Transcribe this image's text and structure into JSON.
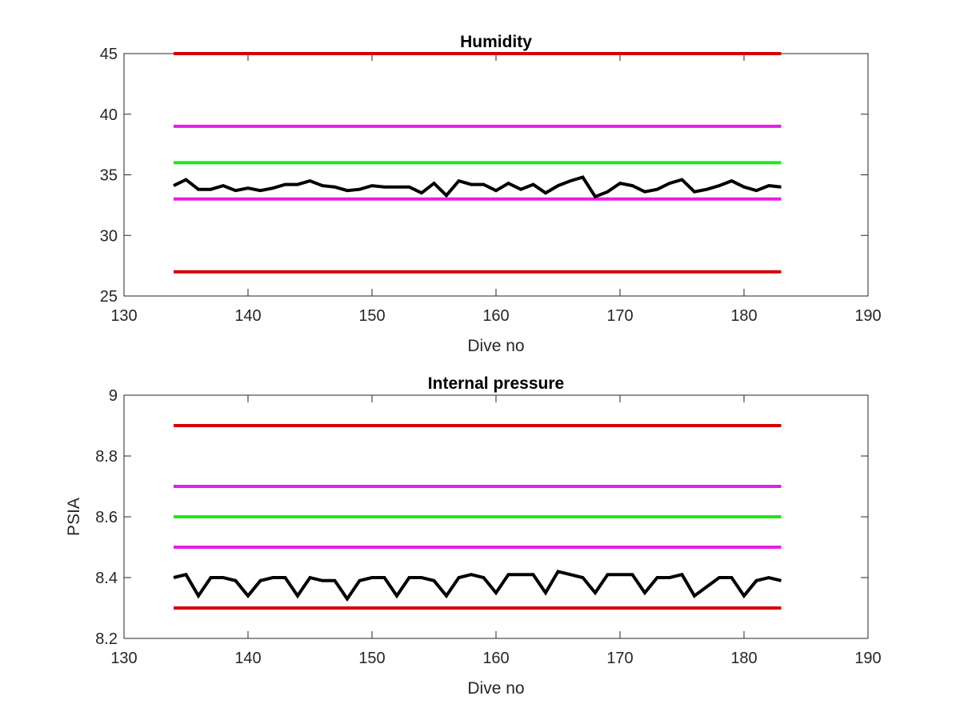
{
  "chart_data": [
    {
      "type": "line",
      "title": "Humidity",
      "xlabel": "Dive no",
      "ylabel": "",
      "xlim": [
        130,
        190
      ],
      "ylim": [
        25,
        45
      ],
      "xticks": [
        130,
        140,
        150,
        160,
        170,
        180,
        190
      ],
      "yticks": [
        25,
        30,
        35,
        40,
        45
      ],
      "grid": false,
      "limit_lines": [
        {
          "value": 45,
          "x_range": [
            134,
            183
          ],
          "color": "#d40000"
        },
        {
          "value": 39,
          "x_range": [
            134,
            183
          ],
          "color": "#e61ee6"
        },
        {
          "value": 36,
          "x_range": [
            134,
            183
          ],
          "color": "#1ee61e"
        },
        {
          "value": 33,
          "x_range": [
            134,
            183
          ],
          "color": "#e61ee6"
        },
        {
          "value": 27,
          "x_range": [
            134,
            183
          ],
          "color": "#d40000"
        }
      ],
      "series": [
        {
          "color": "#000000",
          "x": [
            134,
            135,
            136,
            137,
            138,
            139,
            140,
            141,
            142,
            143,
            144,
            145,
            146,
            147,
            148,
            149,
            150,
            151,
            152,
            153,
            154,
            155,
            156,
            157,
            158,
            159,
            160,
            161,
            162,
            163,
            164,
            165,
            166,
            167,
            168,
            169,
            170,
            171,
            172,
            173,
            174,
            175,
            176,
            177,
            178,
            179,
            180,
            181,
            182,
            183
          ],
          "values": [
            34.1,
            34.6,
            33.8,
            33.8,
            34.1,
            33.7,
            33.9,
            33.7,
            33.9,
            34.2,
            34.2,
            34.5,
            34.1,
            34.0,
            33.7,
            33.8,
            34.1,
            34.0,
            34.0,
            34.0,
            33.5,
            34.3,
            33.3,
            34.5,
            34.2,
            34.2,
            33.7,
            34.3,
            33.8,
            34.2,
            33.5,
            34.1,
            34.5,
            34.8,
            33.2,
            33.6,
            34.3,
            34.1,
            33.6,
            33.8,
            34.3,
            34.6,
            33.6,
            33.8,
            34.1,
            34.5,
            34.0,
            33.7,
            34.1,
            34.0
          ]
        }
      ]
    },
    {
      "type": "line",
      "title": "Internal pressure",
      "xlabel": "Dive no",
      "ylabel": "PSIA",
      "xlim": [
        130,
        190
      ],
      "ylim": [
        8.2,
        9.0
      ],
      "xticks": [
        130,
        140,
        150,
        160,
        170,
        180,
        190
      ],
      "yticks": [
        8.2,
        8.4,
        8.6,
        8.8,
        9
      ],
      "grid": false,
      "limit_lines": [
        {
          "value": 8.9,
          "x_range": [
            134,
            183
          ],
          "color": "#d40000"
        },
        {
          "value": 8.7,
          "x_range": [
            134,
            183
          ],
          "color": "#e61ee6"
        },
        {
          "value": 8.6,
          "x_range": [
            134,
            183
          ],
          "color": "#1ee61e"
        },
        {
          "value": 8.5,
          "x_range": [
            134,
            183
          ],
          "color": "#e61ee6"
        },
        {
          "value": 8.3,
          "x_range": [
            134,
            183
          ],
          "color": "#d40000"
        }
      ],
      "series": [
        {
          "color": "#000000",
          "x": [
            134,
            135,
            136,
            137,
            138,
            139,
            140,
            141,
            142,
            143,
            144,
            145,
            146,
            147,
            148,
            149,
            150,
            151,
            152,
            153,
            154,
            155,
            156,
            157,
            158,
            159,
            160,
            161,
            162,
            163,
            164,
            165,
            166,
            167,
            168,
            169,
            170,
            171,
            172,
            173,
            174,
            175,
            176,
            177,
            178,
            179,
            180,
            181,
            182,
            183
          ],
          "values": [
            8.4,
            8.41,
            8.34,
            8.4,
            8.4,
            8.39,
            8.34,
            8.39,
            8.4,
            8.4,
            8.34,
            8.4,
            8.39,
            8.39,
            8.33,
            8.39,
            8.4,
            8.4,
            8.34,
            8.4,
            8.4,
            8.39,
            8.34,
            8.4,
            8.41,
            8.4,
            8.35,
            8.41,
            8.41,
            8.41,
            8.35,
            8.42,
            8.41,
            8.4,
            8.35,
            8.41,
            8.41,
            8.41,
            8.35,
            8.4,
            8.4,
            8.41,
            8.34,
            8.37,
            8.4,
            8.4,
            8.34,
            8.39,
            8.4,
            8.39
          ]
        }
      ]
    }
  ]
}
